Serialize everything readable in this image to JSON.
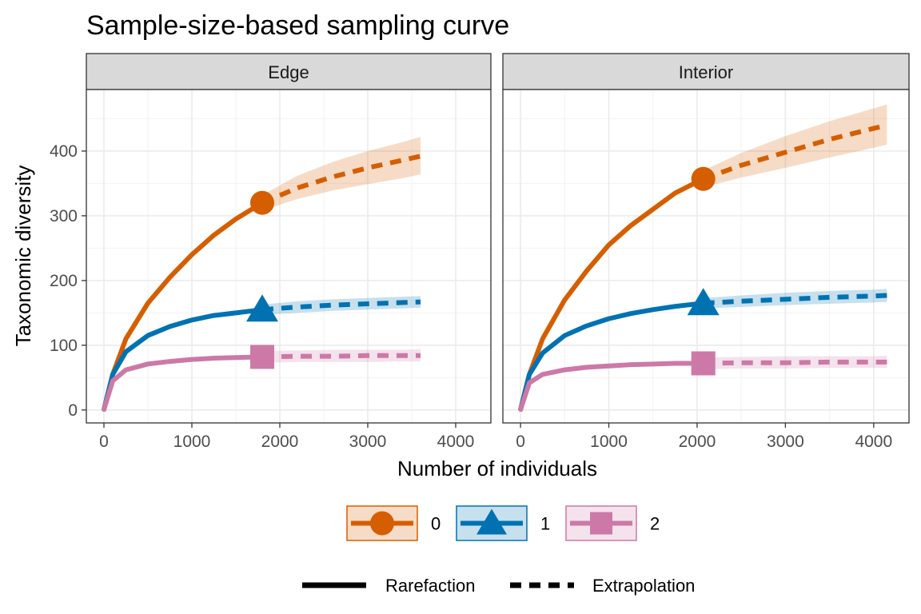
{
  "chart_data": {
    "type": "line",
    "title": "Sample-size-based sampling curve",
    "xlabel": "Number of individuals",
    "ylabel": "Taxonomic diversity",
    "xlim": [
      -200,
      4400
    ],
    "ylim": [
      -20,
      495
    ],
    "x_ticks": [
      "0",
      "1000",
      "2000",
      "3000",
      "4000"
    ],
    "y_ticks": [
      "0",
      "100",
      "200",
      "300",
      "400"
    ],
    "grid": true,
    "legend_position": "bottom",
    "colors": {
      "0": "#D55E00",
      "1": "#0072B2",
      "2": "#CC79A7"
    },
    "legend": {
      "order_labels": [
        "0",
        "1",
        "2"
      ],
      "method_labels": [
        "Rarefaction",
        "Extrapolation"
      ]
    },
    "panels": [
      {
        "name": "Edge",
        "series": [
          {
            "order": "0",
            "rarefaction": [
              [
                1,
                1
              ],
              [
                100,
                55
              ],
              [
                250,
                110
              ],
              [
                500,
                165
              ],
              [
                750,
                205
              ],
              [
                1000,
                240
              ],
              [
                1250,
                270
              ],
              [
                1500,
                295
              ],
              [
                1800,
                320
              ]
            ],
            "extrapolation": [
              [
                1800,
                320
              ],
              [
                2200,
                343
              ],
              [
                2600,
                360
              ],
              [
                3000,
                374
              ],
              [
                3400,
                386
              ],
              [
                3600,
                392
              ]
            ],
            "ci_upper": [
              [
                1800,
                332
              ],
              [
                2200,
                362
              ],
              [
                2600,
                383
              ],
              [
                3000,
                400
              ],
              [
                3400,
                414
              ],
              [
                3600,
                422
              ]
            ],
            "ci_lower": [
              [
                1800,
                308
              ],
              [
                2200,
                326
              ],
              [
                2600,
                339
              ],
              [
                3000,
                349
              ],
              [
                3400,
                358
              ],
              [
                3600,
                364
              ]
            ],
            "observed": [
              1800,
              320
            ]
          },
          {
            "order": "1",
            "rarefaction": [
              [
                1,
                1
              ],
              [
                100,
                55
              ],
              [
                250,
                90
              ],
              [
                500,
                115
              ],
              [
                750,
                129
              ],
              [
                1000,
                139
              ],
              [
                1250,
                146
              ],
              [
                1500,
                150
              ],
              [
                1800,
                155
              ]
            ],
            "extrapolation": [
              [
                1800,
                155
              ],
              [
                2200,
                159
              ],
              [
                2600,
                162
              ],
              [
                3000,
                164
              ],
              [
                3400,
                166
              ],
              [
                3600,
                167
              ]
            ],
            "ci_upper": [
              [
                1800,
                163
              ],
              [
                2200,
                168
              ],
              [
                2600,
                171
              ],
              [
                3000,
                173
              ],
              [
                3400,
                175
              ],
              [
                3600,
                176
              ]
            ],
            "ci_lower": [
              [
                1800,
                147
              ],
              [
                2200,
                150
              ],
              [
                2600,
                153
              ],
              [
                3000,
                155
              ],
              [
                3400,
                157
              ],
              [
                3600,
                158
              ]
            ],
            "observed": [
              1800,
              155
            ]
          },
          {
            "order": "2",
            "rarefaction": [
              [
                1,
                1
              ],
              [
                100,
                45
              ],
              [
                250,
                62
              ],
              [
                500,
                71
              ],
              [
                750,
                75
              ],
              [
                1000,
                78
              ],
              [
                1250,
                80
              ],
              [
                1500,
                81
              ],
              [
                1800,
                82
              ]
            ],
            "extrapolation": [
              [
                1800,
                82
              ],
              [
                2200,
                83
              ],
              [
                2600,
                83
              ],
              [
                3000,
                84
              ],
              [
                3400,
                84
              ],
              [
                3600,
                84
              ]
            ],
            "ci_upper": [
              [
                1800,
                91
              ],
              [
                2200,
                92
              ],
              [
                2600,
                93
              ],
              [
                3000,
                93
              ],
              [
                3400,
                93
              ],
              [
                3600,
                94
              ]
            ],
            "ci_lower": [
              [
                1800,
                73
              ],
              [
                2200,
                74
              ],
              [
                2600,
                74
              ],
              [
                3000,
                74
              ],
              [
                3400,
                75
              ],
              [
                3600,
                75
              ]
            ],
            "observed": [
              1800,
              82
            ]
          }
        ]
      },
      {
        "name": "Interior",
        "series": [
          {
            "order": "0",
            "rarefaction": [
              [
                1,
                1
              ],
              [
                100,
                55
              ],
              [
                250,
                110
              ],
              [
                500,
                170
              ],
              [
                750,
                215
              ],
              [
                1000,
                255
              ],
              [
                1250,
                285
              ],
              [
                1500,
                310
              ],
              [
                1750,
                335
              ],
              [
                2070,
                357
              ]
            ],
            "extrapolation": [
              [
                2070,
                357
              ],
              [
                2500,
                378
              ],
              [
                3000,
                398
              ],
              [
                3500,
                418
              ],
              [
                4000,
                435
              ],
              [
                4150,
                440
              ]
            ],
            "ci_upper": [
              [
                2070,
                370
              ],
              [
                2500,
                397
              ],
              [
                3000,
                423
              ],
              [
                3500,
                446
              ],
              [
                4000,
                466
              ],
              [
                4150,
                472
              ]
            ],
            "ci_lower": [
              [
                2070,
                344
              ],
              [
                2500,
                359
              ],
              [
                3000,
                374
              ],
              [
                3500,
                390
              ],
              [
                4000,
                405
              ],
              [
                4150,
                410
              ]
            ],
            "observed": [
              2070,
              357
            ]
          },
          {
            "order": "1",
            "rarefaction": [
              [
                1,
                1
              ],
              [
                100,
                55
              ],
              [
                250,
                88
              ],
              [
                500,
                115
              ],
              [
                750,
                130
              ],
              [
                1000,
                141
              ],
              [
                1250,
                149
              ],
              [
                1500,
                155
              ],
              [
                1750,
                160
              ],
              [
                2070,
                165
              ]
            ],
            "extrapolation": [
              [
                2070,
                165
              ],
              [
                2500,
                168
              ],
              [
                3000,
                171
              ],
              [
                3500,
                174
              ],
              [
                4000,
                176
              ],
              [
                4150,
                177
              ]
            ],
            "ci_upper": [
              [
                2070,
                173
              ],
              [
                2500,
                177
              ],
              [
                3000,
                181
              ],
              [
                3500,
                184
              ],
              [
                4000,
                186
              ],
              [
                4150,
                187
              ]
            ],
            "ci_lower": [
              [
                2070,
                157
              ],
              [
                2500,
                159
              ],
              [
                3000,
                162
              ],
              [
                3500,
                164
              ],
              [
                4000,
                166
              ],
              [
                4150,
                167
              ]
            ],
            "observed": [
              2070,
              165
            ]
          },
          {
            "order": "2",
            "rarefaction": [
              [
                1,
                1
              ],
              [
                100,
                42
              ],
              [
                250,
                55
              ],
              [
                500,
                62
              ],
              [
                750,
                66
              ],
              [
                1000,
                68
              ],
              [
                1250,
                70
              ],
              [
                1500,
                71
              ],
              [
                1750,
                72
              ],
              [
                2070,
                72
              ]
            ],
            "extrapolation": [
              [
                2070,
                72
              ],
              [
                2500,
                73
              ],
              [
                3000,
                73
              ],
              [
                3500,
                74
              ],
              [
                4000,
                74
              ],
              [
                4150,
                74
              ]
            ],
            "ci_upper": [
              [
                2070,
                81
              ],
              [
                2500,
                82
              ],
              [
                3000,
                83
              ],
              [
                3500,
                83
              ],
              [
                4000,
                83
              ],
              [
                4150,
                84
              ]
            ],
            "ci_lower": [
              [
                2070,
                63
              ],
              [
                2500,
                64
              ],
              [
                3000,
                64
              ],
              [
                3500,
                65
              ],
              [
                4000,
                65
              ],
              [
                4150,
                65
              ]
            ],
            "observed": [
              2070,
              72
            ]
          }
        ]
      }
    ]
  }
}
